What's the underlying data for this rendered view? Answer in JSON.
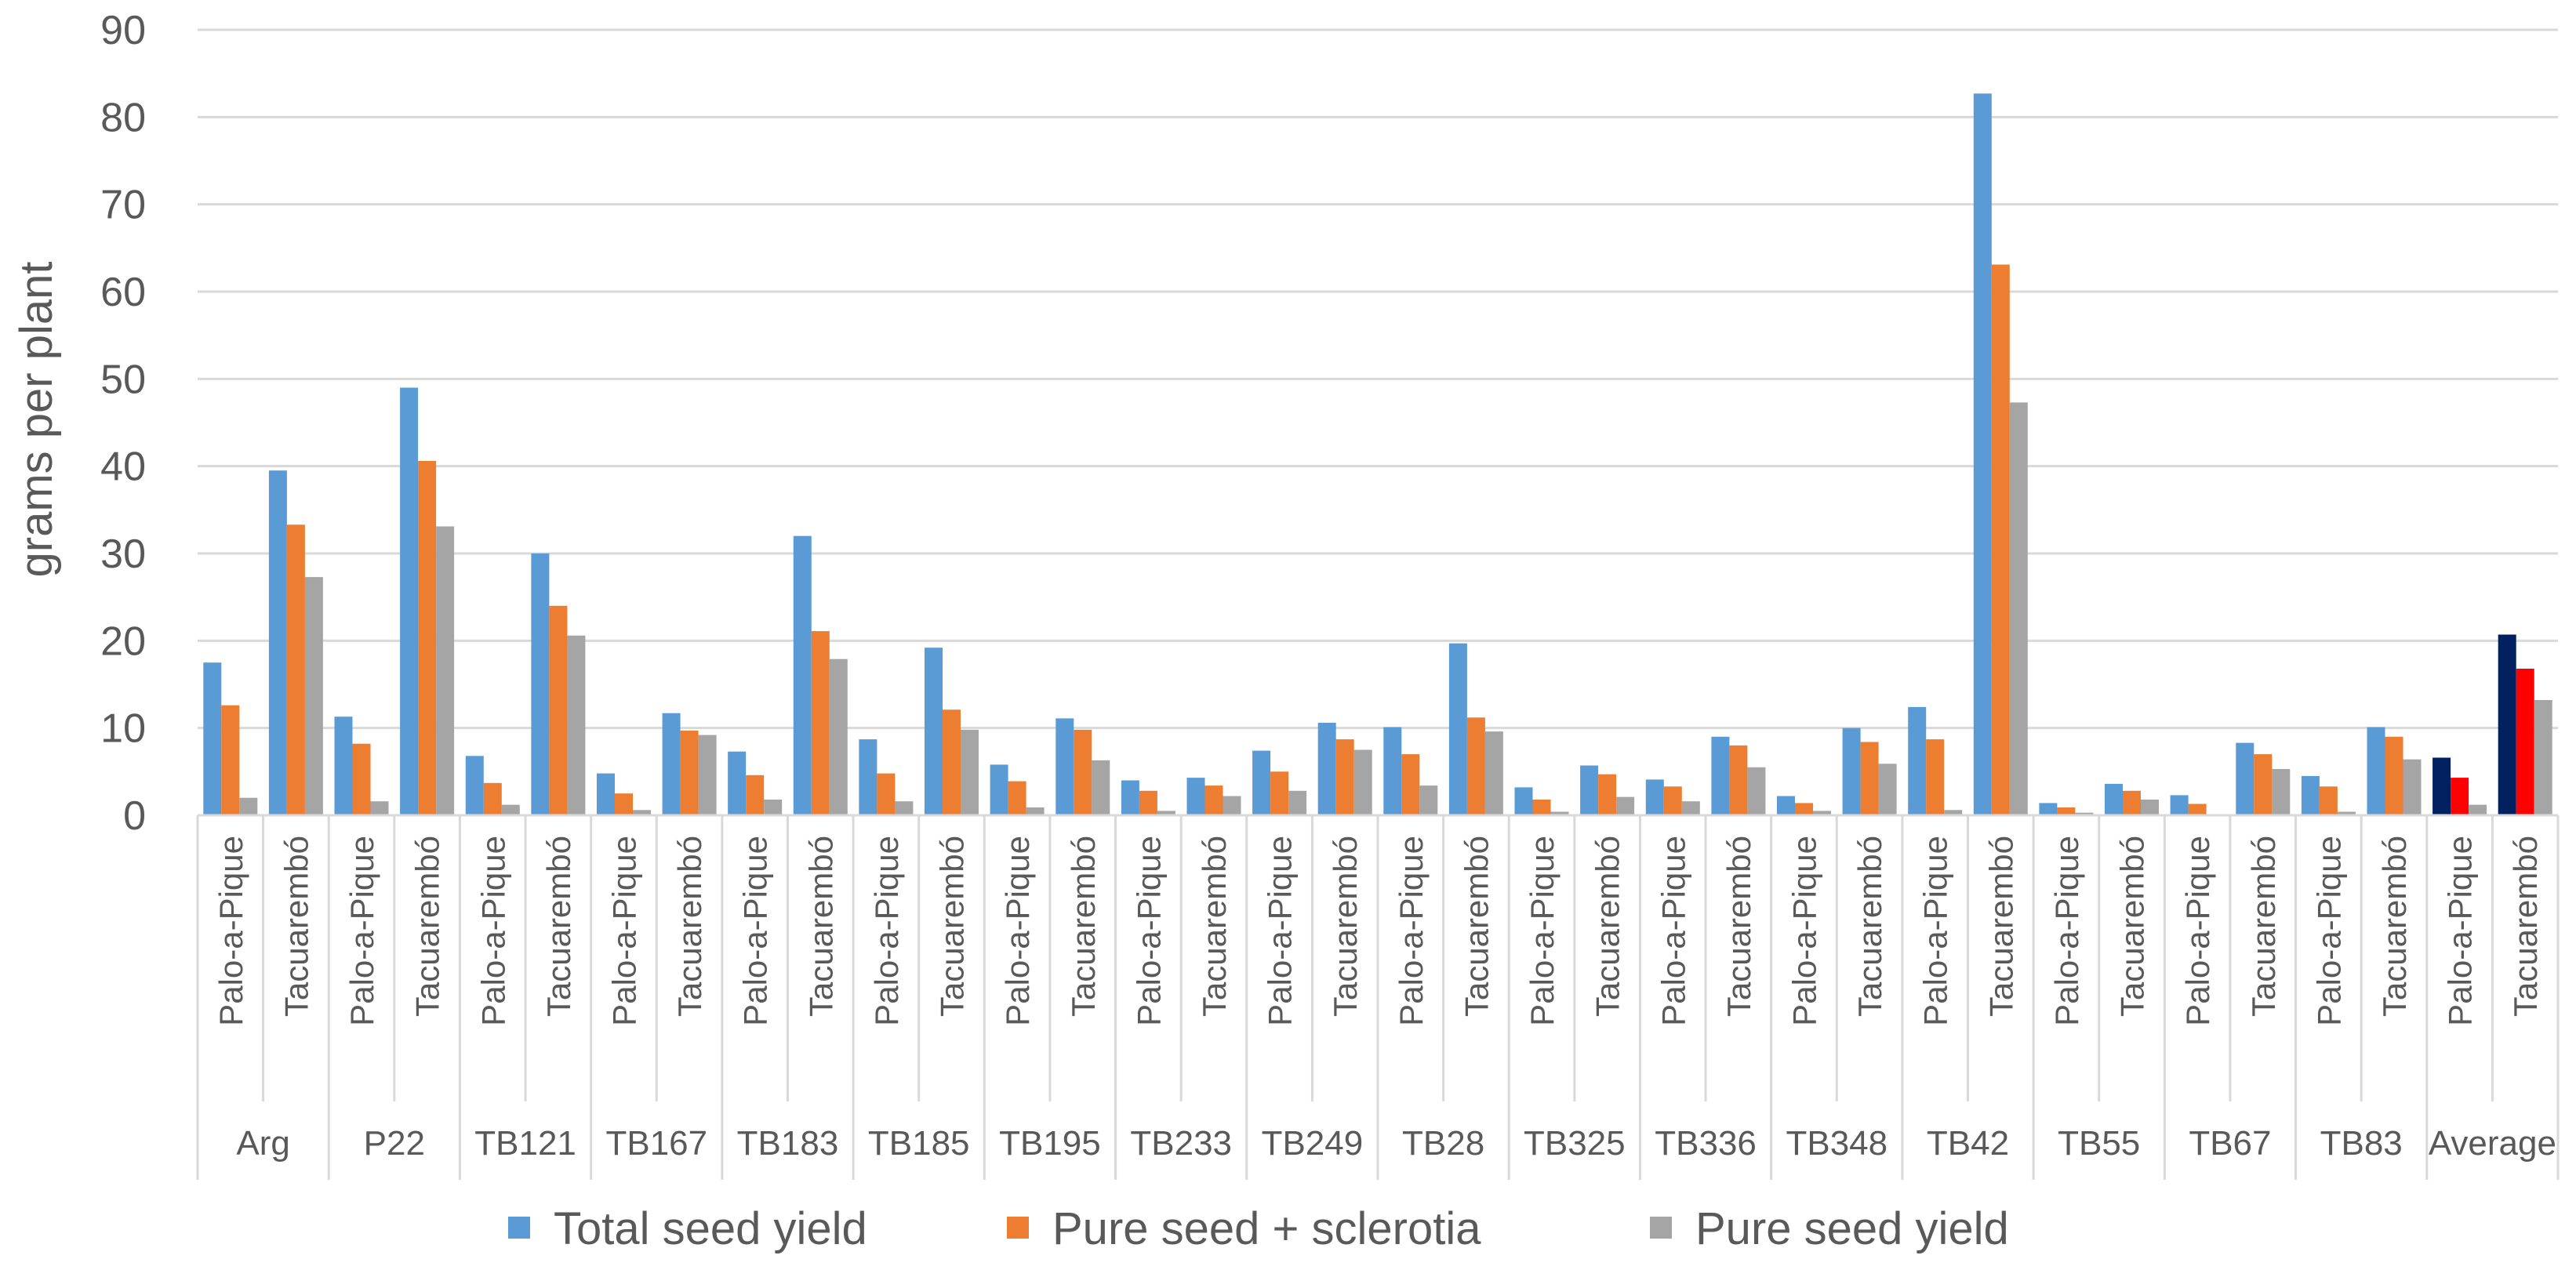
{
  "chart_data": {
    "type": "bar",
    "ylabel": "grams per plant",
    "ylim": [
      0,
      90
    ],
    "yticks": [
      0,
      10,
      20,
      30,
      40,
      50,
      60,
      70,
      80,
      90
    ],
    "grid": "horizontal",
    "legend_position": "bottom",
    "groups": [
      "Arg",
      "P22",
      "TB121",
      "TB167",
      "TB183",
      "TB185",
      "TB195",
      "TB233",
      "TB249",
      "TB28",
      "TB325",
      "TB336",
      "TB348",
      "TB42",
      "TB55",
      "TB67",
      "TB83",
      "Average"
    ],
    "sites": [
      "Palo-a-Pique",
      "Tacuarembó"
    ],
    "categories": [
      "Arg Palo-a-Pique",
      "Arg Tacuarembó",
      "P22 Palo-a-Pique",
      "P22 Tacuarembó",
      "TB121 Palo-a-Pique",
      "TB121 Tacuarembó",
      "TB167 Palo-a-Pique",
      "TB167 Tacuarembó",
      "TB183 Palo-a-Pique",
      "TB183 Tacuarembó",
      "TB185 Palo-a-Pique",
      "TB185 Tacuarembó",
      "TB195 Palo-a-Pique",
      "TB195 Tacuarembó",
      "TB233 Palo-a-Pique",
      "TB233 Tacuarembó",
      "TB249 Palo-a-Pique",
      "TB249 Tacuarembó",
      "TB28 Palo-a-Pique",
      "TB28 Tacuarembó",
      "TB325 Palo-a-Pique",
      "TB325 Tacuarembó",
      "TB336 Palo-a-Pique",
      "TB336 Tacuarembó",
      "TB348 Palo-a-Pique",
      "TB348 Tacuarembó",
      "TB42 Palo-a-Pique",
      "TB42 Tacuarembó",
      "TB55 Palo-a-Pique",
      "TB55 Tacuarembó",
      "TB67 Palo-a-Pique",
      "TB67 Tacuarembó",
      "TB83 Palo-a-Pique",
      "TB83 Tacuarembó",
      "Average Palo-a-Pique",
      "Average Tacuarembó"
    ],
    "series": [
      {
        "name": "Total seed yield",
        "color": "#5B9BD5",
        "values": [
          17.5,
          39.5,
          11.3,
          49.0,
          6.8,
          30.0,
          4.8,
          11.7,
          7.3,
          32.0,
          8.7,
          19.2,
          5.8,
          11.1,
          4.0,
          4.3,
          7.4,
          10.6,
          10.1,
          19.7,
          3.2,
          5.7,
          4.1,
          9.0,
          2.2,
          10.0,
          12.4,
          82.7,
          1.4,
          3.6,
          2.3,
          8.3,
          4.5,
          10.1,
          6.6,
          20.7
        ]
      },
      {
        "name": "Pure seed + sclerotia",
        "color": "#ED7D31",
        "values": [
          12.6,
          33.3,
          8.2,
          40.6,
          3.7,
          24.0,
          2.5,
          9.7,
          4.6,
          21.1,
          4.8,
          12.1,
          3.9,
          9.8,
          2.8,
          3.4,
          5.0,
          8.7,
          7.0,
          11.2,
          1.8,
          4.7,
          3.3,
          8.0,
          1.4,
          8.4,
          8.7,
          63.1,
          0.9,
          2.8,
          1.3,
          7.0,
          3.3,
          9.0,
          4.3,
          16.8
        ]
      },
      {
        "name": "Pure seed yield",
        "color": "#A5A5A5",
        "values": [
          2.0,
          27.3,
          1.6,
          33.1,
          1.2,
          20.6,
          0.6,
          9.2,
          1.8,
          17.9,
          1.6,
          9.8,
          0.9,
          6.3,
          0.5,
          2.2,
          2.8,
          7.5,
          3.4,
          9.6,
          0.4,
          2.1,
          1.6,
          5.5,
          0.5,
          5.9,
          0.6,
          47.3,
          0.3,
          1.8,
          0.0,
          5.3,
          0.4,
          6.4,
          1.2,
          13.2
        ]
      }
    ],
    "highlight_colors": {
      "average_total_seed_yield": "#002060",
      "average_pure_seed_sclerotia": "#FF0000"
    },
    "axis_color": "#D9D9D9",
    "text_color": "#595959"
  }
}
